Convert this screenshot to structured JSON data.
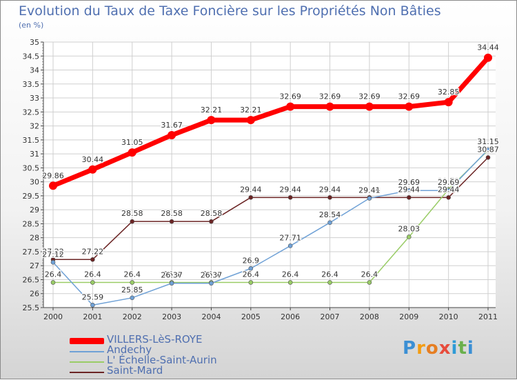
{
  "header": {
    "title": "Evolution du Taux de Taxe Foncière sur les Propriétés Non Bâties",
    "unit": "(en %)"
  },
  "brand": {
    "letters": [
      "P",
      "r",
      "o",
      "x",
      "i",
      "t",
      "i"
    ]
  },
  "chart_data": {
    "type": "line",
    "title": "Evolution du Taux de Taxe Foncière sur les Propriétés Non Bâties",
    "ylabel": "(en %)",
    "xlabel": "",
    "ylim": [
      25.5,
      35
    ],
    "ytick_step": 0.5,
    "grid": true,
    "legend_position": "bottom-left",
    "categories": [
      "2000",
      "2001",
      "2002",
      "2003",
      "2004",
      "2005",
      "2006",
      "2007",
      "2008",
      "2009",
      "2010",
      "2011"
    ],
    "yticks": [
      "25.5",
      "26",
      "26.5",
      "27",
      "27.5",
      "28",
      "28.5",
      "29",
      "29.5",
      "30",
      "30.5",
      "31",
      "31.5",
      "32",
      "32.5",
      "33",
      "33.5",
      "34",
      "34.5",
      "35"
    ],
    "series": [
      {
        "name": "Saint-Mard",
        "color": "#6b2424",
        "values": [
          27.22,
          27.22,
          28.58,
          28.58,
          28.58,
          29.44,
          29.44,
          29.44,
          29.44,
          29.44,
          29.44,
          30.87
        ],
        "labels": [
          "27.22",
          "27.22",
          "28.58",
          "28.58",
          "28.58",
          "29.44",
          "29.44",
          "29.44",
          "29.44",
          "29.44",
          "29.44",
          "30.87"
        ]
      },
      {
        "name": "L' Échelle-Saint-Aurin",
        "color": "#99cc66",
        "values": [
          26.4,
          26.4,
          26.4,
          26.4,
          26.4,
          26.4,
          26.4,
          26.4,
          26.4,
          28.03,
          29.73,
          31.13
        ],
        "labels": [
          "26.4",
          "26.4",
          "26.4",
          "26.4",
          "26.4",
          "26.4",
          "26.4",
          "26.4",
          "26.4",
          "28.03",
          "29.73",
          "31.13"
        ]
      },
      {
        "name": "Andechy",
        "color": "#6fa1d6",
        "values": [
          27.12,
          25.59,
          25.85,
          26.37,
          26.37,
          26.9,
          27.71,
          28.54,
          29.41,
          29.69,
          29.69,
          31.15
        ],
        "labels": [
          "27.12",
          "25.59",
          "25.85",
          "26.37",
          "26.37",
          "26.9",
          "27.71",
          "28.54",
          "29.41",
          "29.69",
          "29.69",
          "31.15"
        ]
      },
      {
        "name": "VILLERS-LèS-ROYE",
        "color": "#ff0000",
        "values": [
          29.86,
          30.44,
          31.05,
          31.67,
          32.21,
          32.21,
          32.69,
          32.69,
          32.69,
          32.69,
          32.85,
          34.44
        ],
        "labels": [
          "29.86",
          "30.44",
          "31.05",
          "31.67",
          "32.21",
          "32.21",
          "32.69",
          "32.69",
          "32.69",
          "32.69",
          "32.85",
          "34.44"
        ]
      }
    ],
    "legend": [
      {
        "name": "VILLERS-LèS-ROYE",
        "color": "#ff0000",
        "thick": true
      },
      {
        "name": "Andechy",
        "color": "#6fa1d6",
        "thick": false
      },
      {
        "name": "L' Échelle-Saint-Aurin",
        "color": "#99cc66",
        "thick": false
      },
      {
        "name": "Saint-Mard",
        "color": "#6b2424",
        "thick": false
      }
    ]
  }
}
